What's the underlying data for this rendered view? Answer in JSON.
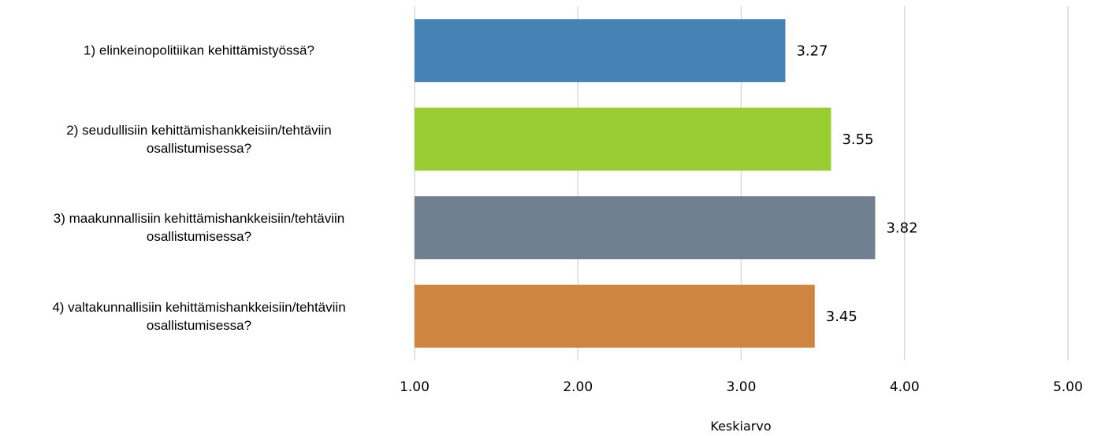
{
  "chart_data": {
    "type": "bar",
    "orientation": "horizontal",
    "categories": [
      [
        "1) elinkeinopolitiikan kehittämistyössä?"
      ],
      [
        "2) seudullisiin kehittämishankkeisiin/tehtäviin",
        "osallistumisessa?"
      ],
      [
        "3) maakunnallisiin kehittämishankkeisiin/tehtäviin",
        "osallistumisessa?"
      ],
      [
        "4) valtakunnallisiin kehittämishankkeisiin/tehtäviin",
        "osallistumisessa?"
      ]
    ],
    "values": [
      3.27,
      3.55,
      3.82,
      3.45
    ],
    "value_labels": [
      "3.27",
      "3.55",
      "3.82",
      "3.45"
    ],
    "colors": [
      "#4682B4",
      "#9ACD32",
      "#708090",
      "#CD853F"
    ],
    "xlim": [
      1,
      5
    ],
    "xticks": [
      1,
      2,
      3,
      4,
      5
    ],
    "xtick_labels": [
      "1.00",
      "2.00",
      "3.00",
      "4.00",
      "5.00"
    ],
    "xlabel": "Keskiarvo",
    "grid": "vertical",
    "grid_color": "#d9d9d9",
    "legend": "none"
  }
}
